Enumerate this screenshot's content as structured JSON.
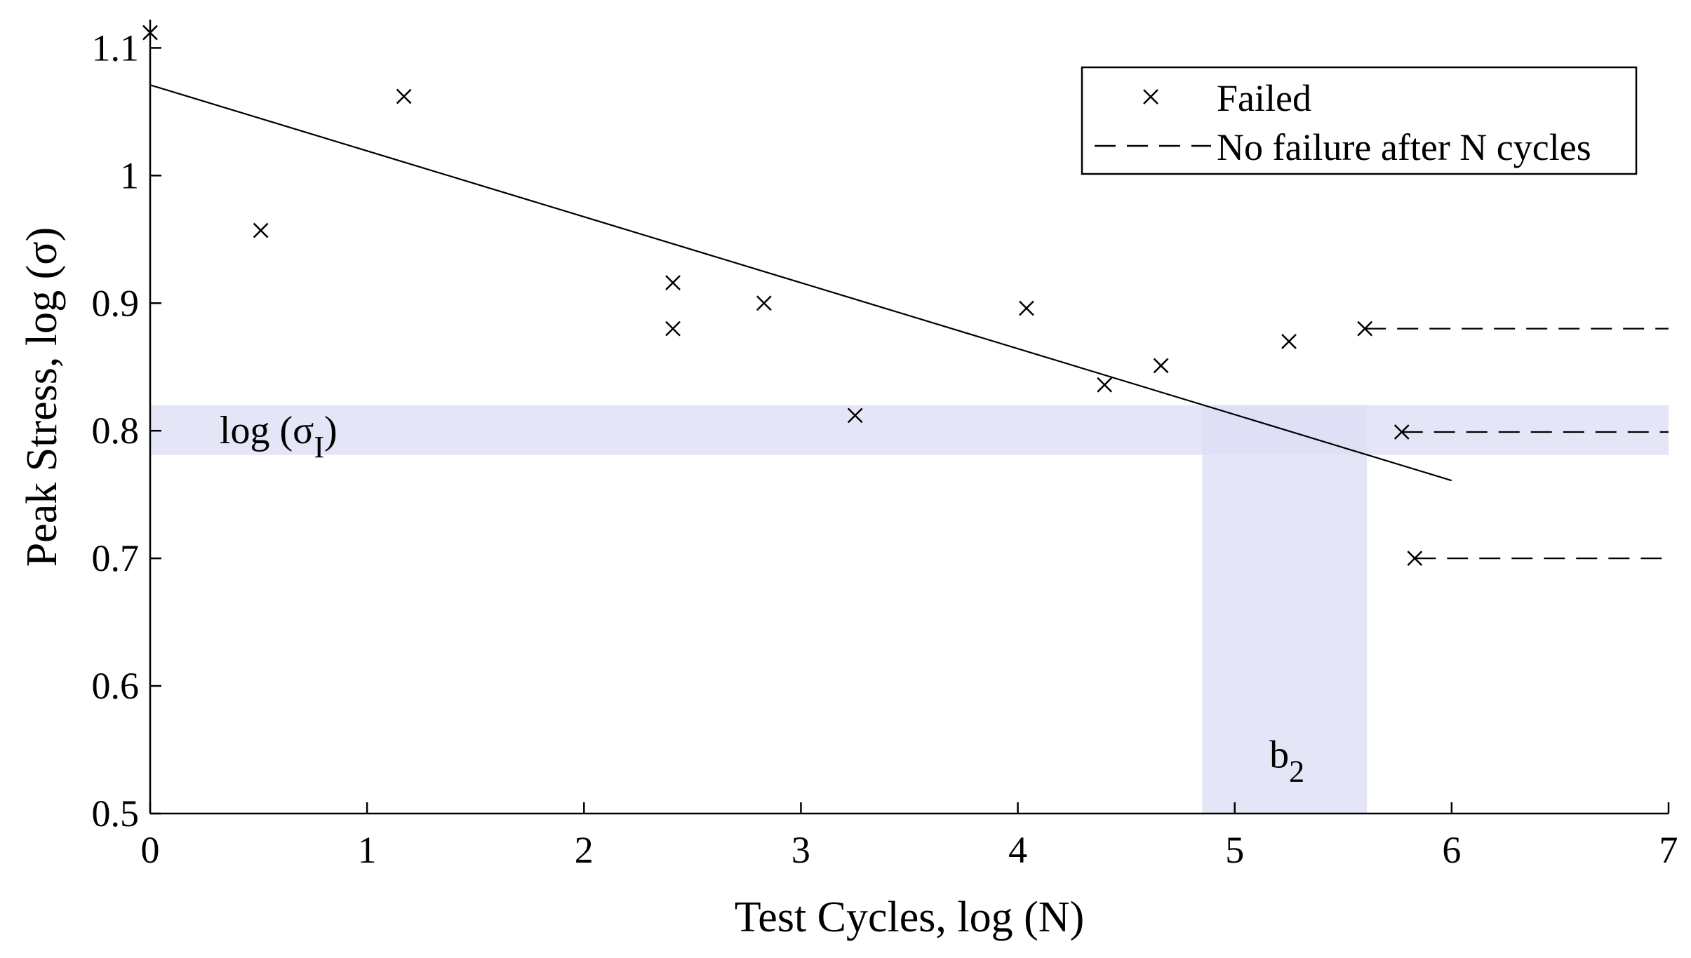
{
  "chart_data": {
    "type": "scatter",
    "title": "",
    "xlabel": "Test Cycles, log (N)",
    "ylabel": "Peak Stress, log (σ)",
    "xlim": [
      0,
      7
    ],
    "ylim": [
      0.5,
      1.12
    ],
    "x_ticks": [
      0,
      1,
      2,
      3,
      4,
      5,
      6,
      7
    ],
    "x_tick_labels": [
      "0",
      "1",
      "2",
      "3",
      "4",
      "5",
      "6",
      "7"
    ],
    "y_ticks": [
      0.5,
      0.6,
      0.7,
      0.8,
      0.9,
      1.0,
      1.1
    ],
    "y_tick_labels": [
      "0.5",
      "0.6",
      "0.7",
      "0.8",
      "0.9",
      "1",
      "1.1"
    ],
    "grid": false,
    "legend_position": "top-right",
    "legend": [
      {
        "label": "Failed",
        "marker": "x"
      },
      {
        "label": "No failure after N cycles",
        "marker": "dashed-line"
      }
    ],
    "series": [
      {
        "name": "Failed",
        "marker": "x",
        "points": [
          {
            "x": 0.0,
            "y": 1.112
          },
          {
            "x": 0.51,
            "y": 0.957
          },
          {
            "x": 1.17,
            "y": 1.062
          },
          {
            "x": 2.41,
            "y": 0.916
          },
          {
            "x": 2.41,
            "y": 0.88
          },
          {
            "x": 2.83,
            "y": 0.9
          },
          {
            "x": 3.25,
            "y": 0.812
          },
          {
            "x": 4.04,
            "y": 0.896
          },
          {
            "x": 4.4,
            "y": 0.836
          },
          {
            "x": 4.66,
            "y": 0.851
          },
          {
            "x": 5.25,
            "y": 0.87
          },
          {
            "x": 5.6,
            "y": 0.88
          },
          {
            "x": 5.77,
            "y": 0.799
          },
          {
            "x": 5.83,
            "y": 0.7
          }
        ]
      },
      {
        "name": "No failure after N cycles",
        "style": "dashed",
        "segments": [
          {
            "x_start": 5.6,
            "x_end": 7.0,
            "y": 0.88
          },
          {
            "x_start": 5.77,
            "x_end": 7.0,
            "y": 0.799
          },
          {
            "x_start": 5.83,
            "x_end": 7.0,
            "y": 0.7
          }
        ]
      },
      {
        "name": "Fit line",
        "style": "solid",
        "points": [
          {
            "x": 0.0,
            "y": 1.071
          },
          {
            "x": 6.0,
            "y": 0.761
          }
        ]
      }
    ],
    "shaded_regions": [
      {
        "name": "sigma-band",
        "orientation": "horizontal",
        "y_min": 0.781,
        "y_max": 0.82,
        "x_min": 0.0,
        "x_max": 7.0,
        "color": "#dcdcf5"
      },
      {
        "name": "b2-band",
        "orientation": "vertical",
        "x_min": 4.85,
        "x_max": 5.61,
        "y_min": 0.5,
        "y_max": 0.82,
        "color": "#dcdcf5"
      }
    ],
    "annotations": [
      {
        "name": "sigma-annotation",
        "text": "log (σ",
        "subscript": "I",
        "suffix": ")",
        "x": 0.32,
        "y": 0.8
      },
      {
        "name": "b2-annotation",
        "text": "b",
        "subscript": "2",
        "suffix": "",
        "x": 5.16,
        "y": 0.546
      }
    ]
  }
}
